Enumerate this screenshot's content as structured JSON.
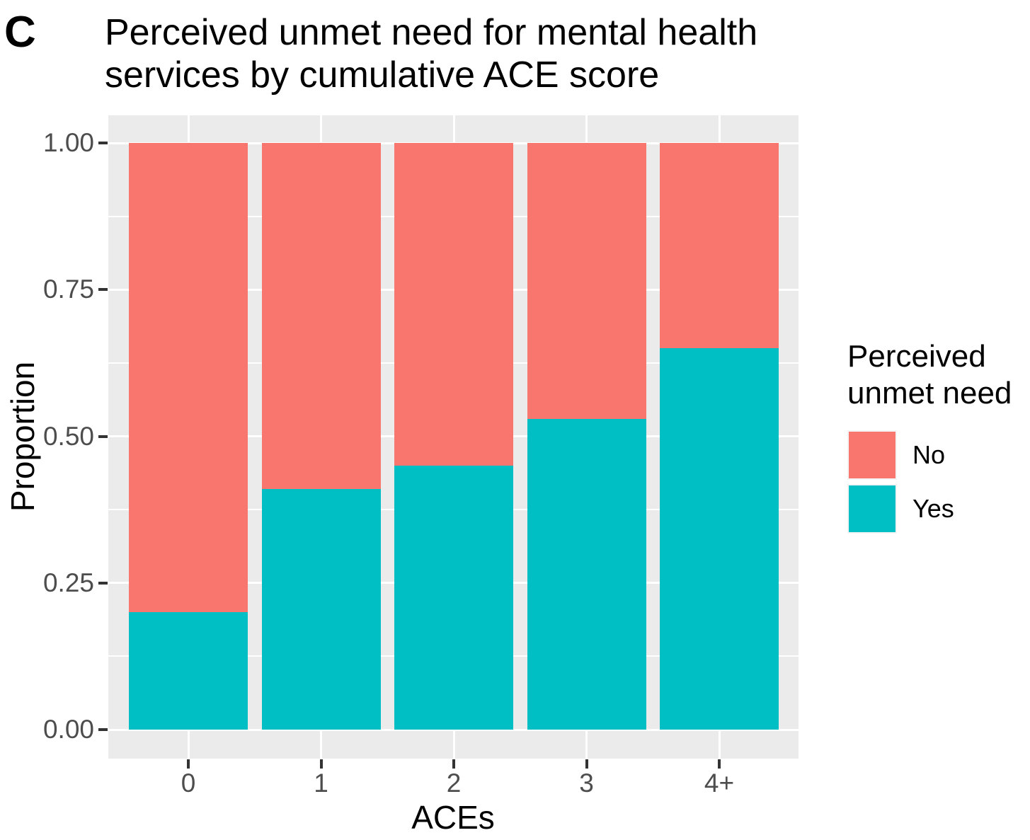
{
  "panel_label": "C",
  "header": {
    "title_lines": [
      "Perceived unmet need for mental health",
      "services by cumulative ACE score"
    ]
  },
  "axes": {
    "y": {
      "title": "Proportion",
      "ticks": [
        {
          "label": "0.00",
          "value": 0.0
        },
        {
          "label": "0.25",
          "value": 0.25
        },
        {
          "label": "0.50",
          "value": 0.5
        },
        {
          "label": "0.75",
          "value": 0.75
        },
        {
          "label": "1.00",
          "value": 1.0
        }
      ],
      "minor_gridlines": [
        0.125,
        0.375,
        0.625,
        0.875
      ]
    },
    "x": {
      "title": "ACEs",
      "ticks": [
        {
          "label": "0"
        },
        {
          "label": "1"
        },
        {
          "label": "2"
        },
        {
          "label": "3"
        },
        {
          "label": "4+"
        }
      ]
    }
  },
  "legend": {
    "title_lines": [
      "Perceived",
      "unmet need"
    ],
    "items": [
      {
        "label": "No",
        "color": "#F8766D"
      },
      {
        "label": "Yes",
        "color": "#00BFC4"
      }
    ]
  },
  "colors": {
    "no": "#F8766D",
    "yes": "#00BFC4",
    "panel_background": "#EBEBEB",
    "gridline": "#FFFFFF",
    "tick_text": "#4D4D4D",
    "tick_mark": "#333333"
  },
  "chart_data": {
    "type": "bar",
    "stacked": true,
    "title": "Perceived unmet need for mental health services by cumulative ACE score",
    "xlabel": "ACEs",
    "ylabel": "Proportion",
    "ylim": [
      0,
      1
    ],
    "categories": [
      "0",
      "1",
      "2",
      "3",
      "4+"
    ],
    "series": [
      {
        "name": "No",
        "color": "#F8766D",
        "values": [
          0.8,
          0.59,
          0.55,
          0.47,
          0.35
        ]
      },
      {
        "name": "Yes",
        "color": "#00BFC4",
        "values": [
          0.2,
          0.41,
          0.45,
          0.53,
          0.65
        ]
      }
    ],
    "legend_title": "Perceived unmet need",
    "legend_position": "right",
    "grid": true
  }
}
